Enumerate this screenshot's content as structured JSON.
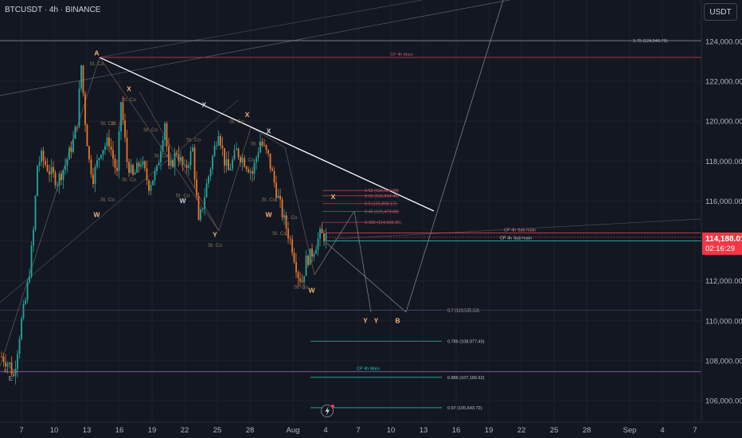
{
  "header": {
    "title": "BTCUSDT · 4h · BINANCE"
  },
  "currency": "USDT",
  "last_price": {
    "value": "114,188.01",
    "countdown": "02:16:29"
  },
  "chart_data": {
    "type": "candlestick",
    "y_ticks": [
      "124,000.00",
      "122,000.00",
      "120,000.00",
      "118,000.00",
      "116,000.00",
      "114,000.00",
      "112,000.00",
      "110,000.00",
      "108,000.00",
      "106,000.00"
    ],
    "y_tick_values": [
      124000,
      122000,
      120000,
      118000,
      116000,
      114000,
      112000,
      110000,
      108000,
      106000
    ],
    "x_ticks": [
      "7",
      "10",
      "13",
      "16",
      "19",
      "22",
      "25",
      "28",
      "Aug",
      "4",
      "7",
      "10",
      "13",
      "16",
      "19",
      "22",
      "25",
      "28",
      "Sep",
      "4",
      "7"
    ],
    "ylim": [
      104500,
      126500
    ],
    "wave_labels": [
      {
        "text": "A",
        "x": "Jul 14",
        "y": 123300
      },
      {
        "text": "X",
        "x": "Jul 17",
        "y": 121500
      },
      {
        "text": "X",
        "x": "Jul 24",
        "y": 120700
      },
      {
        "text": "X",
        "x": "Jul 28",
        "y": 120200
      },
      {
        "text": "X",
        "x": "Jul 30",
        "y": 119400
      },
      {
        "text": "W",
        "x": "Jul 14",
        "y": 115200
      },
      {
        "text": "W",
        "x": "Jul 22",
        "y": 115900
      },
      {
        "text": "Y",
        "x": "Jul 25",
        "y": 114200
      },
      {
        "text": "W",
        "x": "Jul 30",
        "y": 115200
      },
      {
        "text": "W",
        "x": "Aug 3",
        "y": 111400
      },
      {
        "text": "X",
        "x": "Aug 5",
        "y": 116100
      },
      {
        "text": "Y",
        "x": "Aug 8",
        "y": 109900
      },
      {
        "text": "Y",
        "x": "Aug 9",
        "y": 109900
      },
      {
        "text": "B",
        "x": "Aug 11",
        "y": 109900
      },
      {
        "text": "E",
        "x": "Jul 6",
        "y": 107000
      }
    ],
    "fib_levels": [
      {
        "label": "1.75 (124,040.79)",
        "value": 124040.79
      },
      {
        "label": "0.59 (116,529.20)",
        "value": 116529.2
      },
      {
        "label": "0.59 (116,264.41)",
        "value": 116264.41
      },
      {
        "label": "0.5 (115,868.17)",
        "value": 115868.17
      },
      {
        "label": "0.45 (115,473.88)",
        "value": 115473.88
      },
      {
        "label": "0.382 (114,936.39)",
        "value": 114936.39
      },
      {
        "label": "0.7 (110,535.53)",
        "value": 110535.53
      },
      {
        "label": "0.786 (108,977.40)",
        "value": 108977.4
      },
      {
        "label": "0.886 (107,165.62)",
        "value": 107165.62
      },
      {
        "label": "0.97 (105,643.72)",
        "value": 105643.72
      }
    ],
    "cp_levels": [
      {
        "label": "CP 4h Main",
        "value": 123200
      },
      {
        "label": "CP 4h Sub main",
        "value": 114400
      },
      {
        "label": "CP 4h Sub main",
        "value": 114000
      },
      {
        "label": "CP 4h Main",
        "value": 107450
      }
    ],
    "st_co_label": "St. Co",
    "annotation_positions": [
      {
        "x": "Jul 14",
        "y": 122800
      },
      {
        "x": "Jul 15",
        "y": 119800
      },
      {
        "x": "Jul 17",
        "y": 121000
      },
      {
        "x": "Jul 16",
        "y": 119800
      },
      {
        "x": "Jul 17",
        "y": 117000
      },
      {
        "x": "Jul 15",
        "y": 116000
      },
      {
        "x": "Jul 19",
        "y": 119500
      },
      {
        "x": "Jul 20",
        "y": 118200
      },
      {
        "x": "Jul 22",
        "y": 116200
      },
      {
        "x": "Jul 23",
        "y": 119000
      },
      {
        "x": "Jul 25",
        "y": 113700
      },
      {
        "x": "Jul 27",
        "y": 119900
      },
      {
        "x": "Jul 28",
        "y": 118000
      },
      {
        "x": "Jul 29",
        "y": 118800
      },
      {
        "x": "Jul 30",
        "y": 116000
      },
      {
        "x": "Jul 31",
        "y": 114300
      },
      {
        "x": "Aug 2",
        "y": 111600
      },
      {
        "x": "Aug 1",
        "y": 115100
      },
      {
        "x": "Jul 6",
        "y": 107400
      }
    ]
  }
}
